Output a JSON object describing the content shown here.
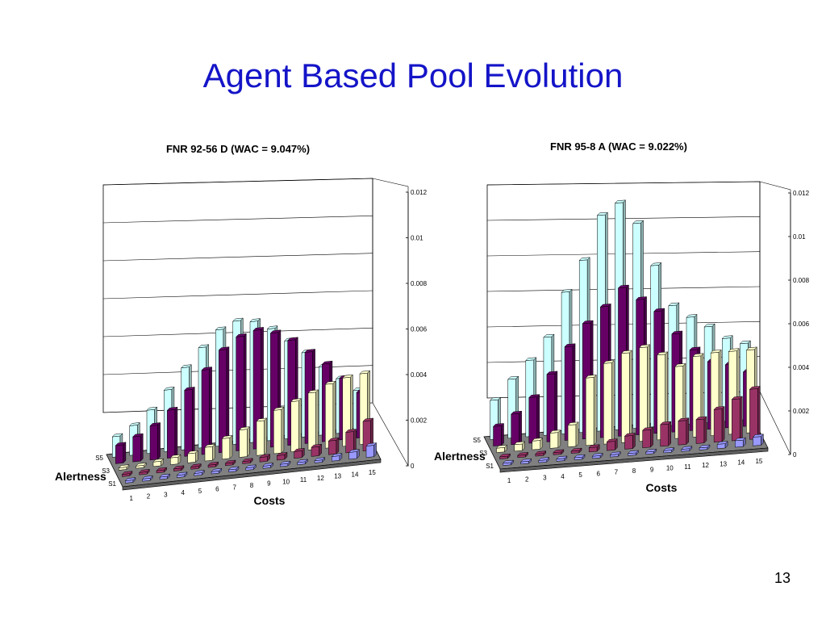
{
  "slide": {
    "title": "Agent Based Pool Evolution",
    "page_number": "13"
  },
  "colors": {
    "title": "#1414c8",
    "S1": "#9999ff",
    "S2": "#993366",
    "S3": "#ffffcc",
    "S4": "#660066",
    "S5": "#ccffff",
    "floor": "#808080"
  },
  "chart_data": [
    {
      "type": "bar3d",
      "title": "FNR 92-56 D (WAC = 9.047%)",
      "xlabel": "Costs",
      "ylabel": "Alertness",
      "zlim": [
        0,
        0.012
      ],
      "zticks": [
        "0",
        "0.002",
        "0.004",
        "0.006",
        "0.008",
        "0.01",
        "0.012"
      ],
      "x": [
        "1",
        "2",
        "3",
        "4",
        "5",
        "6",
        "7",
        "8",
        "9",
        "10",
        "11",
        "12",
        "13",
        "14",
        "15"
      ],
      "depth_labels": [
        "S1",
        "",
        "S3",
        "",
        "S5"
      ],
      "series": [
        {
          "key": "S1",
          "values": [
            0.0001,
            0.0001,
            0.0001,
            0.0001,
            0.0001,
            0.0001,
            0.0001,
            0.0001,
            0.0001,
            0.0001,
            0.0001,
            0.0001,
            0.0002,
            0.0003,
            0.0005
          ]
        },
        {
          "key": "S2",
          "values": [
            0.0001,
            0.0001,
            0.0001,
            0.0001,
            0.0001,
            0.0001,
            0.0001,
            0.0001,
            0.0002,
            0.0002,
            0.0003,
            0.0004,
            0.0006,
            0.0009,
            0.0013
          ]
        },
        {
          "key": "S3",
          "values": [
            0.0001,
            0.0001,
            0.0002,
            0.0003,
            0.0004,
            0.0006,
            0.0009,
            0.0012,
            0.0015,
            0.0019,
            0.0022,
            0.0025,
            0.0028,
            0.003,
            0.0031
          ]
        },
        {
          "key": "S4",
          "values": [
            0.0008,
            0.0011,
            0.0015,
            0.0021,
            0.0029,
            0.0037,
            0.0045,
            0.005,
            0.0052,
            0.005,
            0.0046,
            0.004,
            0.0034,
            0.0027,
            0.002
          ]
        },
        {
          "key": "S5",
          "values": [
            0.0009,
            0.0013,
            0.0019,
            0.0027,
            0.0036,
            0.0044,
            0.0051,
            0.0054,
            0.0053,
            0.0049,
            0.0043,
            0.0037,
            0.003,
            0.0024,
            0.0018
          ]
        }
      ]
    },
    {
      "type": "bar3d",
      "title": "FNR 95-8 A (WAC = 9.022%)",
      "xlabel": "Costs",
      "ylabel": "Alertness",
      "zlim": [
        0,
        0.012
      ],
      "zticks": [
        "0",
        "0.002",
        "0.004",
        "0.006",
        "0.008",
        "0.01",
        "0.012"
      ],
      "x": [
        "1",
        "2",
        "3",
        "4",
        "5",
        "6",
        "7",
        "8",
        "9",
        "10",
        "11",
        "12",
        "13",
        "14",
        "15"
      ],
      "depth_labels": [
        "S1",
        "",
        "S3",
        "",
        "S5"
      ],
      "series": [
        {
          "key": "S1",
          "values": [
            0.0001,
            0.0001,
            0.0001,
            0.0001,
            0.0001,
            0.0001,
            0.0001,
            0.0001,
            0.0001,
            0.0001,
            0.0001,
            0.0001,
            0.0002,
            0.0003,
            0.0004
          ]
        },
        {
          "key": "S2",
          "values": [
            0.0001,
            0.0001,
            0.0001,
            0.0001,
            0.0001,
            0.0002,
            0.0004,
            0.0006,
            0.0008,
            0.001,
            0.0011,
            0.0011,
            0.0015,
            0.0019,
            0.0023
          ]
        },
        {
          "key": "S3",
          "values": [
            0.0002,
            0.0003,
            0.0004,
            0.0007,
            0.001,
            0.0031,
            0.0037,
            0.0041,
            0.0043,
            0.0039,
            0.0033,
            0.0037,
            0.0038,
            0.0038,
            0.0038
          ]
        },
        {
          "key": "S4",
          "values": [
            0.0009,
            0.0014,
            0.0021,
            0.0031,
            0.0043,
            0.0053,
            0.006,
            0.0068,
            0.0062,
            0.0056,
            0.0045,
            0.0037,
            0.0031,
            0.0029,
            0.0025
          ]
        },
        {
          "key": "S5",
          "values": [
            0.0018,
            0.0027,
            0.0035,
            0.0045,
            0.0065,
            0.0079,
            0.0099,
            0.0104,
            0.0094,
            0.0074,
            0.0055,
            0.0049,
            0.0044,
            0.0038,
            0.0035
          ]
        }
      ]
    }
  ]
}
